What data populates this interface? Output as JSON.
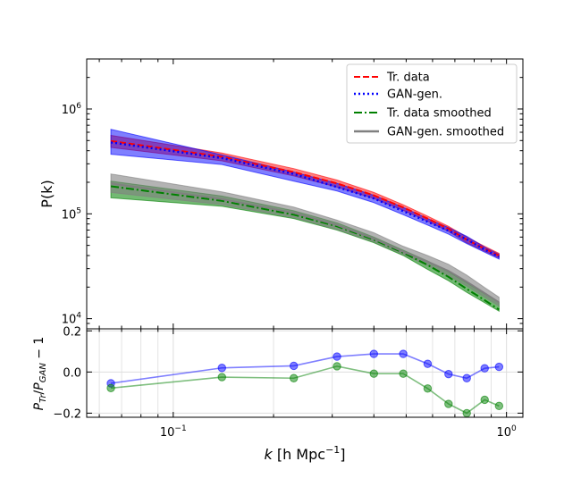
{
  "chart_data": [
    {
      "type": "line",
      "xscale": "log",
      "yscale": "log",
      "xlim": [
        0.055,
        1.12
      ],
      "ylim": [
        8000,
        3000000
      ],
      "ylabel": "P(k)",
      "y_ticks": [
        {
          "value": 10000,
          "base": "10",
          "exp": "4"
        },
        {
          "value": 100000,
          "base": "10",
          "exp": "5"
        },
        {
          "value": 1000000,
          "base": "10",
          "exp": "6"
        }
      ],
      "legend_position": "upper-right",
      "k": [
        0.065,
        0.14,
        0.23,
        0.31,
        0.4,
        0.49,
        0.58,
        0.67,
        0.76,
        0.86,
        0.95
      ],
      "bands": [
        {
          "series": "tr_data",
          "color": "#ff0000",
          "opacity": 0.5,
          "lower": [
            430000,
            320000,
            230000,
            180000,
            140000,
            108000,
            85000,
            68000,
            53000,
            44000,
            38000
          ],
          "upper": [
            560000,
            380000,
            270000,
            210000,
            160000,
            122000,
            95000,
            76000,
            60000,
            49000,
            42000
          ]
        },
        {
          "series": "gan_gen",
          "color": "#0000ff",
          "opacity": 0.5,
          "lower": [
            370000,
            295000,
            205000,
            165000,
            128000,
            98000,
            78000,
            64000,
            52000,
            43000,
            37000
          ],
          "upper": [
            640000,
            365000,
            250000,
            195000,
            150000,
            115000,
            90000,
            74000,
            61000,
            48000,
            41000
          ]
        },
        {
          "series": "tr_smoothed",
          "color": "#008000",
          "opacity": 0.55,
          "lower": [
            142000,
            118000,
            90000,
            70000,
            53000,
            40000,
            29500,
            23000,
            17800,
            14200,
            11800
          ],
          "upper": [
            205000,
            148000,
            107000,
            82000,
            60000,
            45000,
            35500,
            28000,
            22000,
            17200,
            14300
          ]
        },
        {
          "series": "gan_smoothed",
          "color": "#808080",
          "opacity": 0.6,
          "lower": [
            160000,
            122000,
            92000,
            71000,
            54000,
            41000,
            32000,
            25500,
            20500,
            16000,
            13200
          ],
          "upper": [
            240000,
            162000,
            116000,
            87000,
            66000,
            49000,
            40000,
            33000,
            26000,
            19800,
            16000
          ]
        }
      ],
      "series": [
        {
          "id": "tr_data",
          "name": "Tr. data",
          "color": "#ff0000",
          "style": "dashed",
          "values": [
            495000,
            350000,
            250000,
            195000,
            150000,
            115000,
            90000,
            72000,
            56500,
            46500,
            40000
          ]
        },
        {
          "id": "gan_gen",
          "name": "GAN-gen.",
          "color": "#0000ff",
          "style": "dotted",
          "values": [
            480000,
            340000,
            240000,
            180000,
            140000,
            106000,
            84000,
            69000,
            57000,
            45500,
            39000
          ]
        },
        {
          "id": "tr_smoothed",
          "name": "Tr. data smoothed",
          "color": "#008000",
          "style": "dashdot",
          "values": [
            183000,
            133000,
            98000,
            76000,
            56500,
            42500,
            32500,
            25000,
            19200,
            15000,
            12200
          ]
        },
        {
          "id": "gan_smoothed",
          "name": "GAN-gen. smoothed",
          "color": "#808080",
          "style": "solid",
          "values": [
            195000,
            138000,
            102000,
            78000,
            58000,
            43500,
            35000,
            28500,
            22500,
            17500,
            14300
          ]
        }
      ]
    },
    {
      "type": "line",
      "xscale": "log",
      "xlim": [
        0.055,
        1.12
      ],
      "ylim": [
        -0.22,
        0.21
      ],
      "xlabel_prefix": "k",
      "xlabel_units": "[h Mpc",
      "xlabel_exp": "−1",
      "xlabel_close": "]",
      "ylabel": "P_Tr/P_GAN − 1",
      "x_ticks": [
        {
          "value": 0.1,
          "base": "10",
          "exp": "−1"
        },
        {
          "value": 1,
          "base": "10",
          "exp": "0"
        }
      ],
      "y_ticks": [
        {
          "value": -0.2,
          "label": "−0.2"
        },
        {
          "value": 0.0,
          "label": "0.0"
        },
        {
          "value": 0.2,
          "label": "0.2"
        }
      ],
      "grid": true,
      "k": [
        0.065,
        0.14,
        0.23,
        0.31,
        0.4,
        0.49,
        0.58,
        0.67,
        0.76,
        0.86,
        0.95
      ],
      "series": [
        {
          "color": "#0000ff",
          "values": [
            -0.055,
            0.02,
            0.03,
            0.075,
            0.088,
            0.088,
            0.04,
            -0.01,
            -0.03,
            0.018,
            0.025
          ]
        },
        {
          "color": "#008000",
          "values": [
            -0.078,
            -0.025,
            -0.03,
            0.028,
            -0.008,
            -0.008,
            -0.08,
            -0.155,
            -0.2,
            -0.135,
            -0.165
          ]
        }
      ]
    }
  ]
}
